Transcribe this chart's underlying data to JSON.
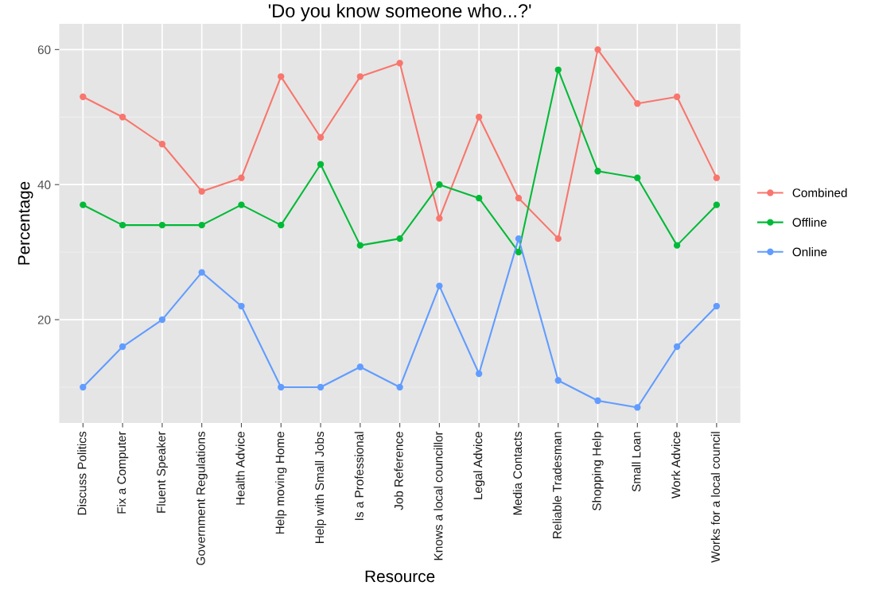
{
  "chart_data": {
    "type": "line",
    "title": "'Do you know someone who...?'",
    "xlabel": "Resource",
    "ylabel": "Percentage",
    "categories": [
      "Discuss Politics",
      "Fix a Computer",
      "Fluent Speaker",
      "Government Regulations",
      "Health Advice",
      "Help moving Home",
      "Help with Small Jobs",
      "Is a Professional",
      "Job Reference",
      "Knows a local councillor",
      "Legal Advice",
      "Media Contacts",
      "Reliable Tradesman",
      "Shopping Help",
      "Small Loan",
      "Work Advice",
      "Works for a local council"
    ],
    "series": [
      {
        "name": "Combined",
        "color": "#f8766d",
        "values": [
          53,
          50,
          46,
          39,
          41,
          56,
          47,
          56,
          58,
          35,
          50,
          38,
          32,
          60,
          52,
          53,
          41
        ]
      },
      {
        "name": "Offline",
        "color": "#00ba38",
        "values": [
          37,
          34,
          34,
          34,
          37,
          34,
          43,
          31,
          32,
          40,
          38,
          30,
          57,
          42,
          41,
          31,
          37
        ]
      },
      {
        "name": "Online",
        "color": "#619cff",
        "values": [
          10,
          16,
          20,
          27,
          22,
          10,
          10,
          13,
          10,
          25,
          12,
          32,
          11,
          8,
          7,
          16,
          22
        ]
      }
    ],
    "ylim": [
      4.7,
      63.8
    ],
    "yticks": [
      20,
      40,
      60
    ],
    "grid": true,
    "legend": "right",
    "marker": "circle",
    "line_style": "solid"
  }
}
